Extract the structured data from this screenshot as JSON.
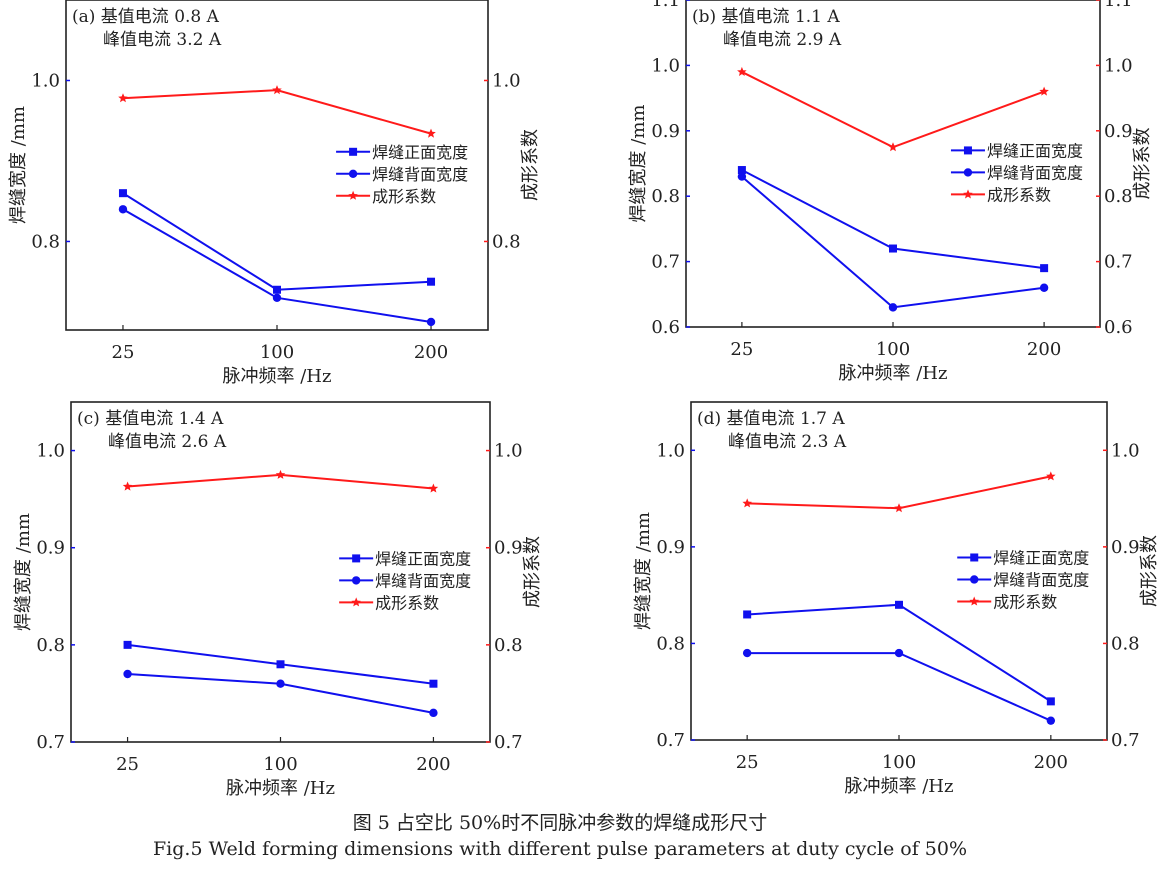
{
  "chart_data": [
    {
      "type": "line",
      "panel_label": "(a)",
      "annotation": [
        "基值电流 0.8 A",
        "峰值电流 3.2 A"
      ],
      "categories": [
        "25",
        "100",
        "200"
      ],
      "xlabel": "脉冲频率 /Hz",
      "ylabel": "焊缝宽度 /mm",
      "y2label": "成形系数",
      "ylim": [
        0.69,
        1.1
      ],
      "yticks": [
        0.8,
        1.0
      ],
      "y2ticks": [
        0.8,
        1.0
      ],
      "legend_position": "right",
      "series": [
        {
          "name": "焊缝正面宽度",
          "axis": "left",
          "marker": "square",
          "color": "#1010ee",
          "values": [
            0.86,
            0.74,
            0.75
          ]
        },
        {
          "name": "焊缝背面宽度",
          "axis": "left",
          "marker": "circle",
          "color": "#1010ee",
          "values": [
            0.84,
            0.73,
            0.7
          ]
        },
        {
          "name": "成形系数",
          "axis": "right",
          "marker": "star",
          "color": "#ff1a1a",
          "values": [
            0.978,
            0.988,
            0.934
          ]
        }
      ]
    },
    {
      "type": "line",
      "panel_label": "(b)",
      "annotation": [
        "基值电流 1.1 A",
        "峰值电流 2.9 A"
      ],
      "categories": [
        "25",
        "100",
        "200"
      ],
      "xlabel": "脉冲频率 /Hz",
      "ylabel": "焊缝宽度 /mm",
      "y2label": "成形系数",
      "ylim": [
        0.6,
        1.1
      ],
      "yticks": [
        0.6,
        0.7,
        0.8,
        0.9,
        1.0,
        1.1
      ],
      "y2ticks": [
        0.6,
        0.7,
        0.8,
        0.9,
        1.0,
        1.1
      ],
      "legend_position": "right",
      "series": [
        {
          "name": "焊缝正面宽度",
          "axis": "left",
          "marker": "square",
          "color": "#1010ee",
          "values": [
            0.84,
            0.72,
            0.69
          ]
        },
        {
          "name": "焊缝背面宽度",
          "axis": "left",
          "marker": "circle",
          "color": "#1010ee",
          "values": [
            0.83,
            0.63,
            0.66
          ]
        },
        {
          "name": "成形系数",
          "axis": "right",
          "marker": "star",
          "color": "#ff1a1a",
          "values": [
            0.99,
            0.875,
            0.96
          ]
        }
      ]
    },
    {
      "type": "line",
      "panel_label": "(c)",
      "annotation": [
        "基值电流 1.4 A",
        "峰值电流 2.6 A"
      ],
      "categories": [
        "25",
        "100",
        "200"
      ],
      "xlabel": "脉冲频率 /Hz",
      "ylabel": "焊缝宽度 /mm",
      "y2label": "成形系数",
      "ylim": [
        0.7,
        1.05
      ],
      "yticks": [
        0.7,
        0.8,
        0.9,
        1.0
      ],
      "y2ticks": [
        0.7,
        0.8,
        0.9,
        1.0
      ],
      "legend_position": "right",
      "series": [
        {
          "name": "焊缝正面宽度",
          "axis": "left",
          "marker": "square",
          "color": "#1010ee",
          "values": [
            0.8,
            0.78,
            0.76
          ]
        },
        {
          "name": "焊缝背面宽度",
          "axis": "left",
          "marker": "circle",
          "color": "#1010ee",
          "values": [
            0.77,
            0.76,
            0.73
          ]
        },
        {
          "name": "成形系数",
          "axis": "right",
          "marker": "star",
          "color": "#ff1a1a",
          "values": [
            0.963,
            0.975,
            0.961
          ]
        }
      ]
    },
    {
      "type": "line",
      "panel_label": "(d)",
      "annotation": [
        "基值电流 1.7 A",
        "峰值电流 2.3 A"
      ],
      "categories": [
        "25",
        "100",
        "200"
      ],
      "xlabel": "脉冲频率 /Hz",
      "ylabel": "焊缝宽度 /mm",
      "y2label": "成形系数",
      "ylim": [
        0.7,
        1.05
      ],
      "yticks": [
        0.7,
        0.8,
        0.9,
        1.0
      ],
      "y2ticks": [
        0.7,
        0.8,
        0.9,
        1.0
      ],
      "legend_position": "right",
      "series": [
        {
          "name": "焊缝正面宽度",
          "axis": "left",
          "marker": "square",
          "color": "#1010ee",
          "values": [
            0.83,
            0.84,
            0.74
          ]
        },
        {
          "name": "焊缝背面宽度",
          "axis": "left",
          "marker": "circle",
          "color": "#1010ee",
          "values": [
            0.79,
            0.79,
            0.72
          ]
        },
        {
          "name": "成形系数",
          "axis": "right",
          "marker": "star",
          "color": "#ff1a1a",
          "values": [
            0.945,
            0.94,
            0.973
          ]
        }
      ]
    }
  ],
  "caption": {
    "zh": "图 5  占空比 50%时不同脉冲参数的焊缝成形尺寸",
    "en": "Fig.5  Weld forming dimensions with different pulse parameters at duty cycle of 50%"
  }
}
